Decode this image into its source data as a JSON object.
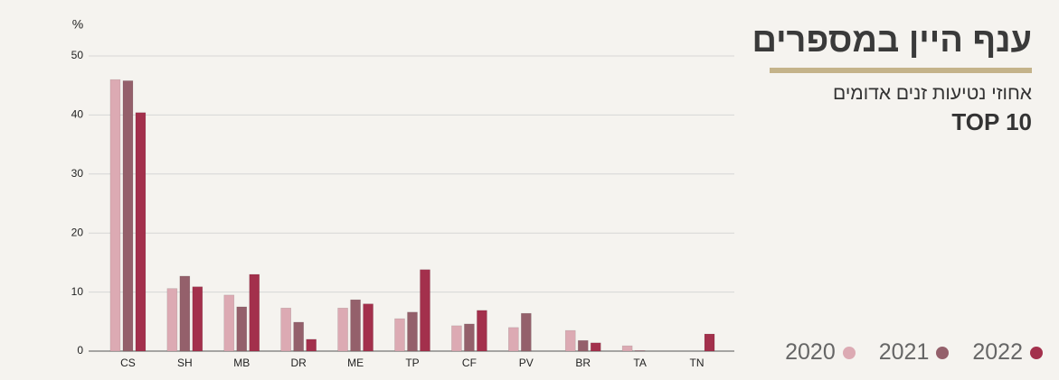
{
  "chart_data": {
    "type": "bar",
    "title": "ענף היין במספרים",
    "subtitle": "אחוזי נטיעות זנים אדומים",
    "annotation": "TOP 10",
    "y_label": "%",
    "categories": [
      "CS",
      "SH",
      "MB",
      "DR",
      "ME",
      "TP",
      "CF",
      "PV",
      "BR",
      "TA",
      "TN"
    ],
    "series": [
      {
        "name": "2020",
        "color": "#dcaab3",
        "values": [
          46.0,
          10.6,
          9.5,
          7.3,
          7.3,
          5.5,
          4.3,
          4.0,
          3.5,
          0.9,
          null
        ]
      },
      {
        "name": "2021",
        "color": "#94606b",
        "values": [
          45.8,
          12.7,
          7.5,
          4.9,
          8.7,
          6.6,
          4.6,
          6.4,
          1.8,
          0.1,
          null
        ]
      },
      {
        "name": "2022",
        "color": "#a3304c",
        "values": [
          40.4,
          10.9,
          13.0,
          2.0,
          8.0,
          13.8,
          6.9,
          null,
          1.4,
          null,
          2.9
        ]
      }
    ],
    "ylim": [
      0,
      50
    ],
    "yticks": [
      0,
      10,
      20,
      30,
      40,
      50
    ],
    "grid": true
  }
}
